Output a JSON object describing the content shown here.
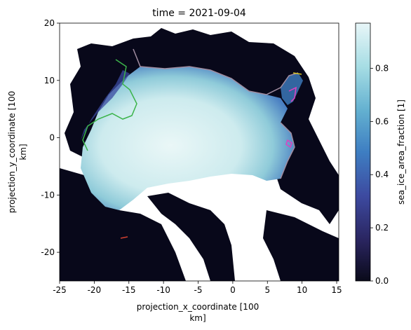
{
  "chart_data": {
    "type": "heatmap",
    "title": "time = 2021-09-04",
    "xlabel_lines": [
      "projection_x_coordinate [100",
      "km]"
    ],
    "ylabel_lines": [
      "projection_y_coordinate [100",
      "km]"
    ],
    "xlim": [
      -25,
      15.3
    ],
    "ylim": [
      -25,
      20
    ],
    "xticks": [
      -25,
      -20,
      -15,
      -10,
      -5,
      0,
      5,
      10,
      15
    ],
    "yticks": [
      -20,
      -10,
      0,
      10,
      20
    ],
    "colorbar": {
      "label": "sea_ice_area_fraction [1]",
      "range": [
        0,
        0.97
      ],
      "ticks": [
        0.0,
        0.2,
        0.4,
        0.6,
        0.8
      ],
      "tick_labels": [
        "0.0",
        "0.2",
        "0.4",
        "0.6",
        "0.8"
      ],
      "colormap": [
        "#0a0a1a",
        "#2a2560",
        "#3d4aa0",
        "#3e7ec2",
        "#63b0d0",
        "#a6dde4",
        "#e8f6f8"
      ]
    },
    "ice_pack_center": [
      -4,
      2
    ],
    "land_color": "#ffffff",
    "ocean_color": "#08081a"
  }
}
